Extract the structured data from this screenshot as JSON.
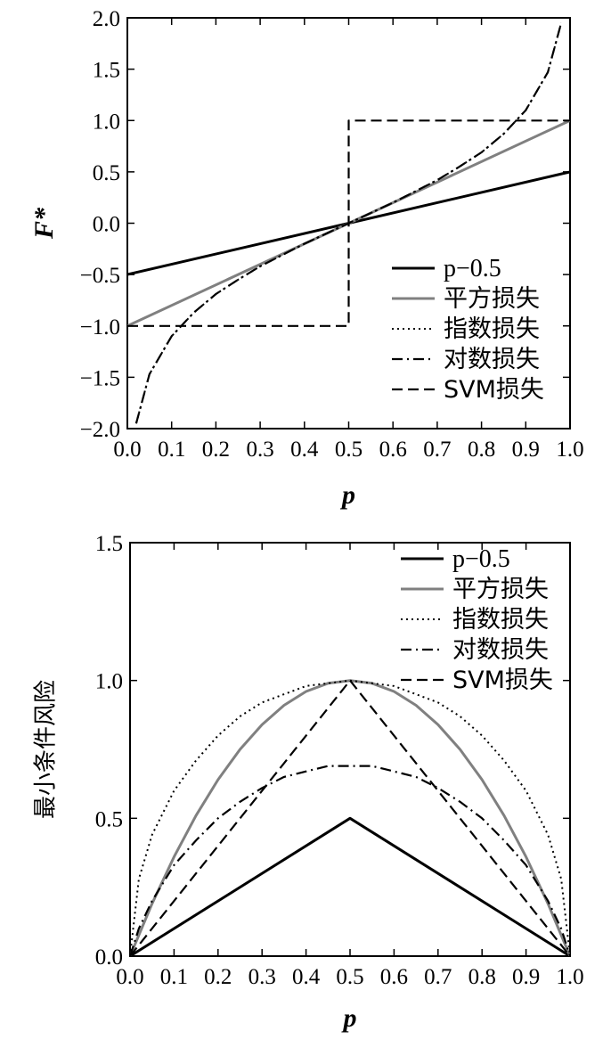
{
  "chart_data": [
    {
      "type": "line",
      "title": "",
      "xlabel": "p",
      "ylabel": "F*",
      "xlim": [
        0,
        1
      ],
      "ylim": [
        -2,
        2
      ],
      "xticks": [
        "0.0",
        "0.1",
        "0.2",
        "0.3",
        "0.4",
        "0.5",
        "0.6",
        "0.7",
        "0.8",
        "0.9",
        "1.0"
      ],
      "yticks": [
        "−2.0",
        "−1.5",
        "−1.0",
        "−0.5",
        "0.0",
        "0.5",
        "1.0",
        "1.5",
        "2.0"
      ],
      "legend_position": "bottom-right",
      "series": [
        {
          "name": "p−0.5",
          "style": "solid",
          "color": "#000000",
          "x": [
            0,
            1
          ],
          "y": [
            -0.5,
            0.5
          ]
        },
        {
          "name": "平方损失",
          "style": "solid",
          "color": "#808080",
          "x": [
            0,
            1
          ],
          "y": [
            -1.0,
            1.0
          ]
        },
        {
          "name": "指数损失",
          "style": "dotted",
          "color": "#000000",
          "x": [
            0.02,
            0.05,
            0.1,
            0.15,
            0.2,
            0.25,
            0.3,
            0.35,
            0.4,
            0.45,
            0.5,
            0.55,
            0.6,
            0.65,
            0.7,
            0.75,
            0.8,
            0.85,
            0.9,
            0.95,
            0.98
          ],
          "y": [
            -1.95,
            -1.47,
            -1.1,
            -0.87,
            -0.69,
            -0.55,
            -0.42,
            -0.31,
            -0.2,
            -0.1,
            0.0,
            0.1,
            0.2,
            0.31,
            0.42,
            0.55,
            0.69,
            0.87,
            1.1,
            1.47,
            1.95
          ]
        },
        {
          "name": "对数损失",
          "style": "dashdot",
          "color": "#000000",
          "x": [
            0.02,
            0.05,
            0.1,
            0.15,
            0.2,
            0.25,
            0.3,
            0.35,
            0.4,
            0.45,
            0.5,
            0.55,
            0.6,
            0.65,
            0.7,
            0.75,
            0.8,
            0.85,
            0.9,
            0.95,
            0.98
          ],
          "y": [
            -1.95,
            -1.47,
            -1.1,
            -0.87,
            -0.69,
            -0.55,
            -0.42,
            -0.31,
            -0.2,
            -0.1,
            0.0,
            0.1,
            0.2,
            0.31,
            0.42,
            0.55,
            0.69,
            0.87,
            1.1,
            1.47,
            1.95
          ]
        },
        {
          "name": "SVM损失",
          "style": "dashed",
          "color": "#000000",
          "x": [
            0,
            0.5,
            0.5,
            1
          ],
          "y": [
            -1,
            -1,
            1,
            1
          ]
        }
      ]
    },
    {
      "type": "line",
      "title": "",
      "xlabel": "p",
      "ylabel": "最小条件风险",
      "xlim": [
        0,
        1
      ],
      "ylim": [
        0,
        1.5
      ],
      "xticks": [
        "0.0",
        "0.1",
        "0.2",
        "0.3",
        "0.4",
        "0.5",
        "0.6",
        "0.7",
        "0.8",
        "0.9",
        "1.0"
      ],
      "yticks": [
        "0.0",
        "0.5",
        "1.0",
        "1.5"
      ],
      "legend_position": "top-right",
      "series": [
        {
          "name": "p−0.5",
          "style": "solid",
          "color": "#000000",
          "x": [
            0,
            0.5,
            1
          ],
          "y": [
            0,
            0.5,
            0
          ]
        },
        {
          "name": "平方损失",
          "style": "solid",
          "color": "#808080",
          "x": [
            0,
            0.05,
            0.1,
            0.15,
            0.2,
            0.25,
            0.3,
            0.35,
            0.4,
            0.45,
            0.5,
            0.55,
            0.6,
            0.65,
            0.7,
            0.75,
            0.8,
            0.85,
            0.9,
            0.95,
            1
          ],
          "y": [
            0,
            0.19,
            0.36,
            0.51,
            0.64,
            0.75,
            0.84,
            0.91,
            0.96,
            0.99,
            1.0,
            0.99,
            0.96,
            0.91,
            0.84,
            0.75,
            0.64,
            0.51,
            0.36,
            0.19,
            0
          ]
        },
        {
          "name": "指数损失",
          "style": "dotted",
          "color": "#000000",
          "x": [
            0,
            0.02,
            0.05,
            0.1,
            0.15,
            0.2,
            0.25,
            0.3,
            0.35,
            0.4,
            0.45,
            0.5,
            0.55,
            0.6,
            0.65,
            0.7,
            0.75,
            0.8,
            0.85,
            0.9,
            0.95,
            0.98,
            1
          ],
          "y": [
            0,
            0.28,
            0.44,
            0.6,
            0.71,
            0.8,
            0.87,
            0.92,
            0.95,
            0.98,
            0.99,
            1.0,
            0.99,
            0.98,
            0.95,
            0.92,
            0.87,
            0.8,
            0.71,
            0.6,
            0.44,
            0.28,
            0
          ]
        },
        {
          "name": "对数损失",
          "style": "dashdot",
          "color": "#000000",
          "x": [
            0,
            0.02,
            0.05,
            0.1,
            0.15,
            0.2,
            0.25,
            0.3,
            0.35,
            0.4,
            0.45,
            0.5,
            0.55,
            0.6,
            0.65,
            0.7,
            0.75,
            0.8,
            0.85,
            0.9,
            0.95,
            0.98,
            1
          ],
          "y": [
            0,
            0.1,
            0.2,
            0.33,
            0.42,
            0.5,
            0.56,
            0.61,
            0.65,
            0.67,
            0.69,
            0.69,
            0.69,
            0.67,
            0.65,
            0.61,
            0.56,
            0.5,
            0.42,
            0.33,
            0.2,
            0.1,
            0
          ]
        },
        {
          "name": "SVM损失",
          "style": "dashed",
          "color": "#000000",
          "x": [
            0,
            0.5,
            1
          ],
          "y": [
            0,
            1.0,
            0
          ]
        }
      ]
    }
  ]
}
